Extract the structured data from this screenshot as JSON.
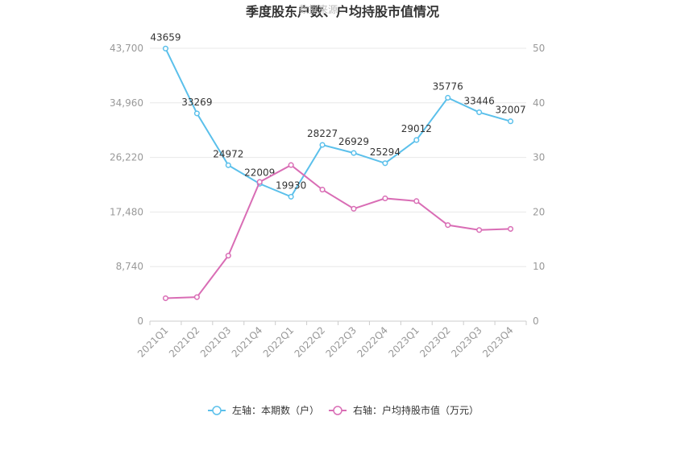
{
  "chart_data": {
    "type": "line",
    "title": "季度股东户数、户均持股市值情况",
    "watermark": "数据来源",
    "categories": [
      "2021Q1",
      "2021Q2",
      "2021Q3",
      "2021Q4",
      "2022Q1",
      "2022Q2",
      "2022Q3",
      "2022Q4",
      "2023Q1",
      "2023Q2",
      "2023Q3",
      "2023Q4"
    ],
    "left_axis": {
      "ticks": [
        "0",
        "8,740",
        "17,480",
        "26,220",
        "34,960",
        "43,700"
      ],
      "ylim": [
        0,
        43700
      ]
    },
    "right_axis": {
      "ticks": [
        "0",
        "10",
        "20",
        "30",
        "40",
        "50"
      ],
      "ylim": [
        0,
        50
      ]
    },
    "series": [
      {
        "name": "左轴：本期数（户）",
        "axis": "left",
        "color": "#5bc0eb",
        "values": [
          43659,
          33269,
          24972,
          22009,
          19930,
          28227,
          26929,
          25294,
          29012,
          35776,
          33446,
          32007
        ],
        "labels": [
          "43659",
          "33269",
          "24972",
          "22009",
          "19930",
          "28227",
          "26929",
          "25294",
          "29012",
          "35776",
          "33446",
          "32007"
        ]
      },
      {
        "name": "右轴：户均持股市值（万元）",
        "axis": "right",
        "color": "#d96db5",
        "values": [
          4.2,
          4.4,
          12.0,
          25.5,
          28.6,
          24.1,
          20.6,
          22.5,
          22.0,
          17.6,
          16.7,
          16.9
        ]
      }
    ],
    "grid": true,
    "legend_position": "bottom"
  }
}
